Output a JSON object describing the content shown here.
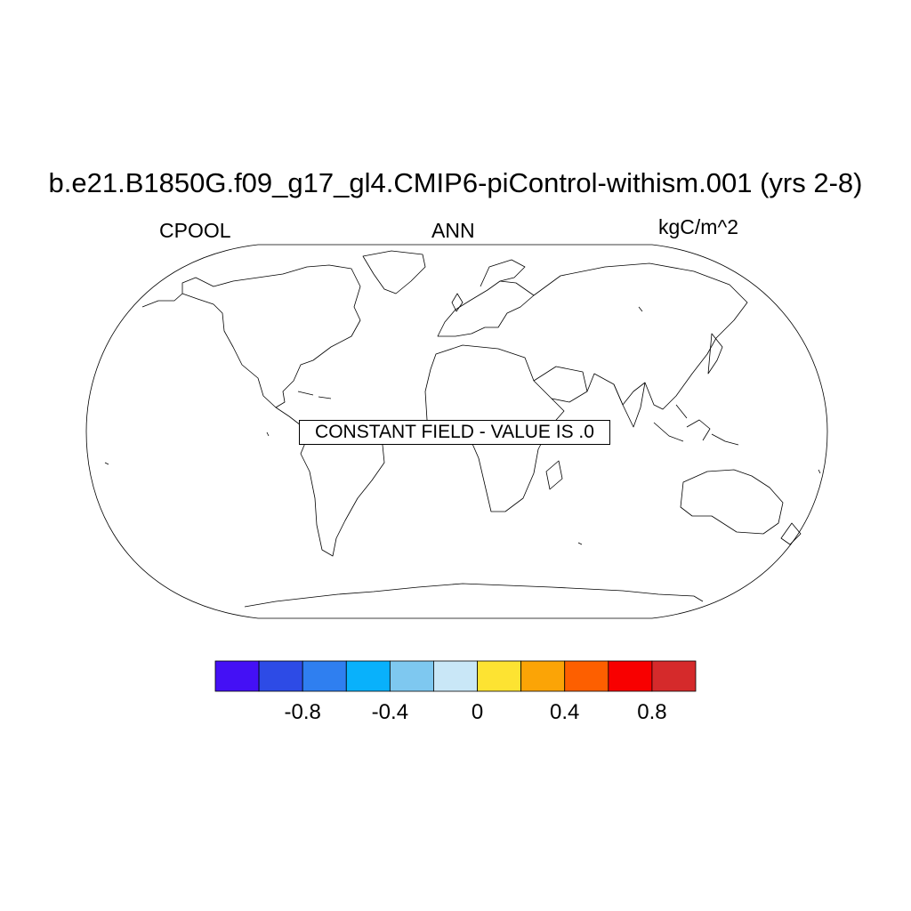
{
  "header": {
    "title": "b.e21.B1850G.f09_g17_gl4.CMIP6-piControl-withism.001 (yrs 2-8)",
    "variable": "CPOOL",
    "season": "ANN",
    "units": "kgC/m^2"
  },
  "map": {
    "projection": "robinson",
    "coastlines": true,
    "notice": "CONSTANT FIELD - VALUE IS .0"
  },
  "colorbar": {
    "colors": [
      "#4410f5",
      "#2d4be6",
      "#2f7ff0",
      "#09b1fb",
      "#7ec8f0",
      "#c9e7f7",
      "#fde332",
      "#fba406",
      "#fd5f00",
      "#f80000",
      "#d52a2b"
    ],
    "tick_labels": [
      "-0.8",
      "-0.4",
      "0",
      "0.4",
      "0.8"
    ]
  }
}
